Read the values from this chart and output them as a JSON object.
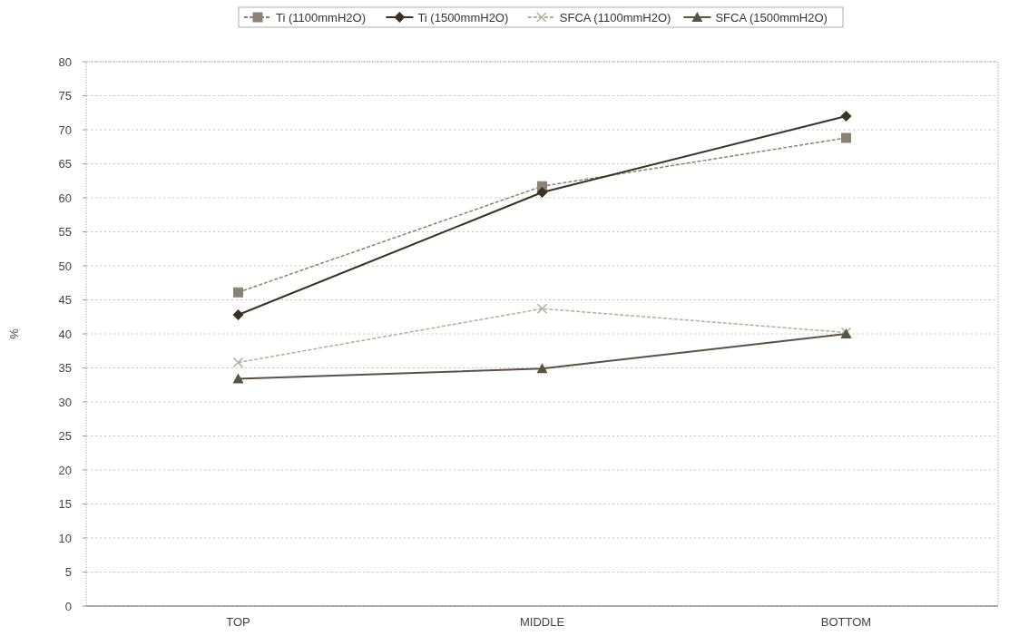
{
  "chart_data": {
    "type": "line",
    "ylabel": "%",
    "categories": [
      "TOP",
      "MIDDLE",
      "BOTTOM"
    ],
    "ylim": [
      0,
      80
    ],
    "yticks": [
      0,
      5,
      10,
      15,
      20,
      25,
      30,
      35,
      40,
      45,
      50,
      55,
      60,
      65,
      70,
      75,
      80
    ],
    "grid": "y",
    "legend": "top",
    "series": [
      {
        "name": "Ti (1100mmH2O)",
        "color": "#8a8272",
        "marker": "square",
        "line_style": "dashed",
        "values": [
          46.1,
          61.7,
          68.8
        ]
      },
      {
        "name": "Ti (1500mmH2O)",
        "color": "#3a3222",
        "marker": "diamond",
        "line_style": "solid",
        "values": [
          42.8,
          60.8,
          72.0
        ]
      },
      {
        "name": "SFCA (1100mmH2O)",
        "color": "#b5ad9d",
        "marker": "cross",
        "line_style": "dashed",
        "values": [
          35.8,
          43.7,
          40.2
        ]
      },
      {
        "name": "SFCA (1500mmH2O)",
        "color": "#5a5242",
        "marker": "triangle",
        "line_style": "solid",
        "values": [
          33.4,
          34.9,
          40.0
        ]
      }
    ]
  }
}
